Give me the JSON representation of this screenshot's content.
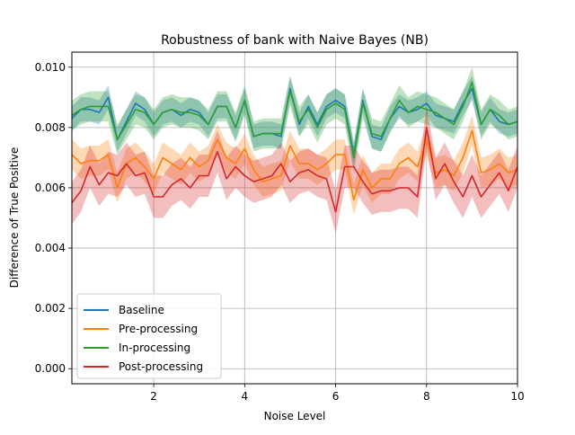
{
  "chart_data": {
    "type": "line",
    "title": "Robustness of bank with Naive Bayes (NB)",
    "xlabel": "Noise Level",
    "ylabel": "Difference of True Positive",
    "xlim": [
      0.2,
      10
    ],
    "ylim": [
      -0.0005,
      0.0105
    ],
    "xticks": [
      2,
      4,
      6,
      8,
      10
    ],
    "yticks": [
      0.0,
      0.002,
      0.004,
      0.006,
      0.008,
      0.01
    ],
    "xtick_labels": [
      "2",
      "4",
      "6",
      "8",
      "10"
    ],
    "ytick_labels": [
      "0.000",
      "0.002",
      "0.004",
      "0.006",
      "0.008",
      "0.010"
    ],
    "grid": true,
    "legend_position": "lower-left",
    "shaded_band": "confidence interval around each series",
    "x": [
      0.2,
      0.4,
      0.6,
      0.8,
      1.0,
      1.2,
      1.4,
      1.6,
      1.8,
      2.0,
      2.2,
      2.4,
      2.6,
      2.8,
      3.0,
      3.2,
      3.4,
      3.6,
      3.8,
      4.0,
      4.2,
      4.4,
      4.6,
      4.8,
      5.0,
      5.2,
      5.4,
      5.6,
      5.8,
      6.0,
      6.2,
      6.4,
      6.6,
      6.8,
      7.0,
      7.2,
      7.4,
      7.6,
      7.8,
      8.0,
      8.2,
      8.4,
      8.6,
      8.8,
      9.0,
      9.2,
      9.4,
      9.6,
      9.8,
      10.0
    ],
    "series": [
      {
        "name": "Baseline",
        "color": "#1f77b4",
        "values": [
          0.0083,
          0.0086,
          0.0086,
          0.0085,
          0.009,
          0.0076,
          0.0082,
          0.0088,
          0.0086,
          0.0081,
          0.0085,
          0.0086,
          0.0084,
          0.0086,
          0.0085,
          0.0081,
          0.0087,
          0.0087,
          0.008,
          0.0089,
          0.0077,
          0.0078,
          0.0078,
          0.0077,
          0.0093,
          0.0081,
          0.0087,
          0.0081,
          0.0087,
          0.0089,
          0.0087,
          0.0071,
          0.0089,
          0.0077,
          0.0076,
          0.0083,
          0.0087,
          0.0085,
          0.0086,
          0.0088,
          0.0084,
          0.0083,
          0.0082,
          0.0088,
          0.0093,
          0.0081,
          0.0086,
          0.0082,
          0.0081,
          0.0082
        ],
        "band": 0.0004
      },
      {
        "name": "Pre-processing",
        "color": "#ff7f0e",
        "values": [
          0.0071,
          0.0068,
          0.0069,
          0.0069,
          0.0071,
          0.006,
          0.0068,
          0.007,
          0.0067,
          0.0063,
          0.007,
          0.0068,
          0.0066,
          0.007,
          0.0067,
          0.0069,
          0.0076,
          0.007,
          0.0068,
          0.0073,
          0.0066,
          0.0062,
          0.0063,
          0.0064,
          0.0074,
          0.0068,
          0.0068,
          0.0066,
          0.0068,
          0.0071,
          0.0071,
          0.0056,
          0.0066,
          0.006,
          0.0063,
          0.0063,
          0.0068,
          0.007,
          0.0067,
          0.0076,
          0.0065,
          0.0066,
          0.0064,
          0.007,
          0.0079,
          0.0065,
          0.0066,
          0.0068,
          0.0065,
          0.0066
        ],
        "band": 0.0005
      },
      {
        "name": "In-processing",
        "color": "#2ca02c",
        "values": [
          0.0084,
          0.0086,
          0.0087,
          0.0087,
          0.0087,
          0.0076,
          0.0081,
          0.0086,
          0.0085,
          0.0081,
          0.0085,
          0.0086,
          0.0085,
          0.0085,
          0.0084,
          0.0081,
          0.0087,
          0.0087,
          0.008,
          0.0089,
          0.0077,
          0.0078,
          0.0078,
          0.0078,
          0.0092,
          0.0082,
          0.0086,
          0.008,
          0.0086,
          0.0088,
          0.0086,
          0.007,
          0.0088,
          0.0078,
          0.0077,
          0.0083,
          0.0089,
          0.0085,
          0.0087,
          0.0086,
          0.0085,
          0.0083,
          0.0081,
          0.0087,
          0.0095,
          0.0081,
          0.0086,
          0.0084,
          0.0081,
          0.0082
        ],
        "band": 0.0005
      },
      {
        "name": "Post-processing",
        "color": "#d62728",
        "values": [
          0.0055,
          0.0059,
          0.0067,
          0.0061,
          0.0065,
          0.0064,
          0.0068,
          0.0064,
          0.0065,
          0.0057,
          0.0057,
          0.0061,
          0.0063,
          0.006,
          0.0064,
          0.0064,
          0.0072,
          0.0063,
          0.0067,
          0.0064,
          0.0062,
          0.0063,
          0.0064,
          0.0068,
          0.0062,
          0.0065,
          0.0066,
          0.0064,
          0.0063,
          0.0052,
          0.0067,
          0.0067,
          0.0062,
          0.0058,
          0.0059,
          0.0059,
          0.006,
          0.006,
          0.0057,
          0.008,
          0.0063,
          0.0068,
          0.0062,
          0.0057,
          0.0064,
          0.0057,
          0.0061,
          0.0065,
          0.0059,
          0.0067
        ],
        "band": 0.0007
      }
    ]
  }
}
